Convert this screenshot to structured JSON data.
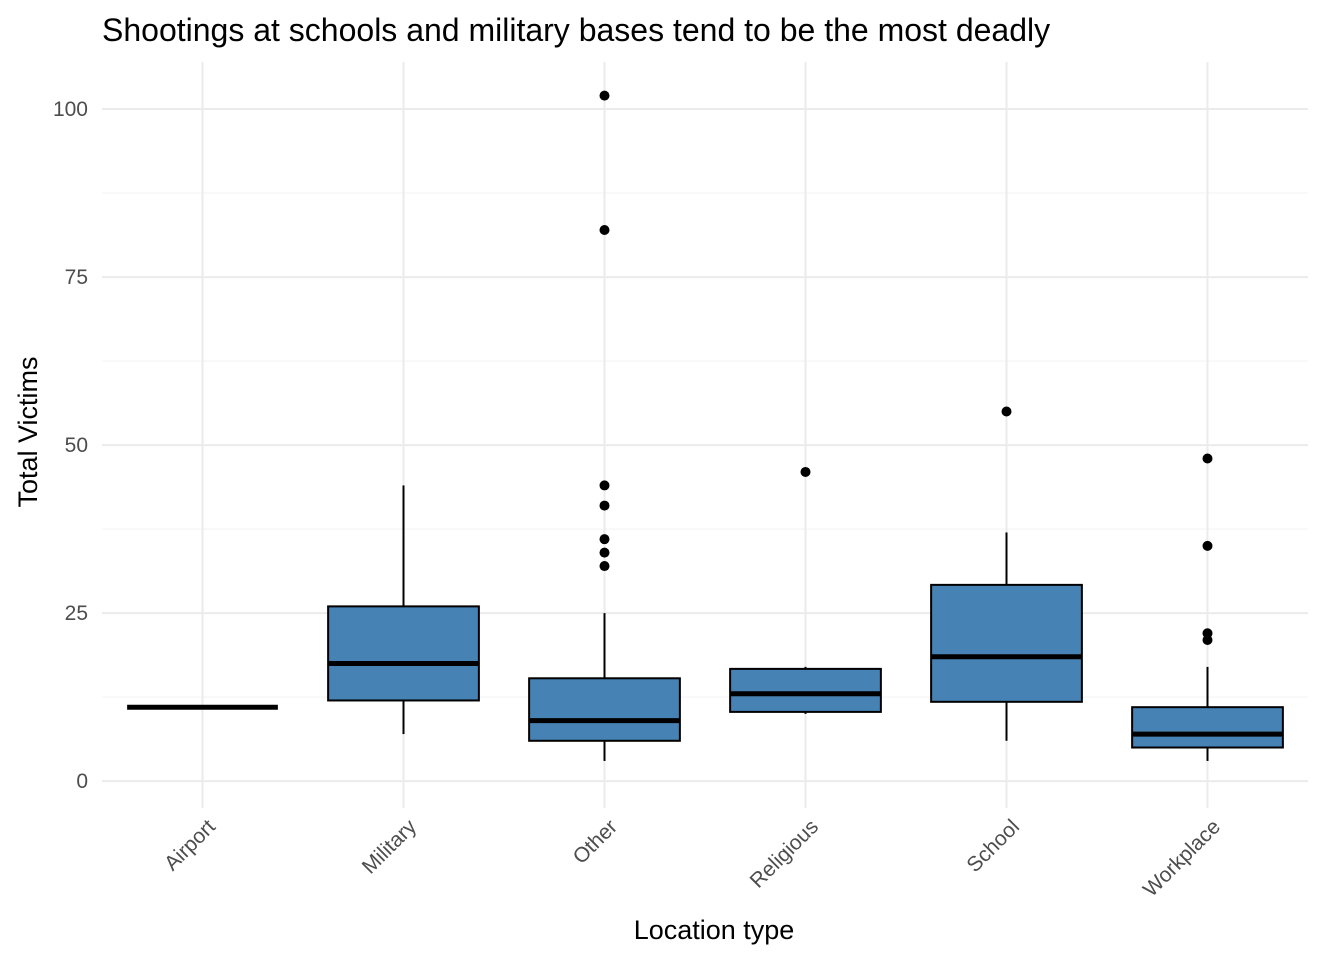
{
  "chart_data": {
    "type": "boxplot",
    "title": "Shootings at schools and military bases tend to be the most deadly",
    "xlabel": "Location type",
    "ylabel": "Total Victims",
    "ylim": [
      -4,
      107
    ],
    "yticks": [
      0,
      25,
      50,
      75,
      100
    ],
    "grid": true,
    "colors": {
      "fill": "#4682b4",
      "stroke": "#000000",
      "grid": "#ebebeb"
    },
    "categories": [
      "Airport",
      "Military",
      "Other",
      "Religious",
      "School",
      "Workplace"
    ],
    "boxes": [
      {
        "category": "Airport",
        "min": 11,
        "q1": 11,
        "median": 11,
        "q3": 11,
        "max": 11,
        "outliers": []
      },
      {
        "category": "Military",
        "min": 7,
        "q1": 12,
        "median": 17.5,
        "q3": 26,
        "max": 44,
        "outliers": []
      },
      {
        "category": "Other",
        "min": 3,
        "q1": 6,
        "median": 9,
        "q3": 15.3,
        "max": 25,
        "outliers": [
          102,
          82,
          44,
          41,
          36,
          34,
          32
        ]
      },
      {
        "category": "Religious",
        "min": 10,
        "q1": 10.3,
        "median": 13,
        "q3": 16.7,
        "max": 17,
        "outliers": [
          46
        ]
      },
      {
        "category": "School",
        "min": 6,
        "q1": 11.8,
        "median": 18.5,
        "q3": 29.2,
        "max": 37,
        "outliers": [
          55
        ]
      },
      {
        "category": "Workplace",
        "min": 3,
        "q1": 5,
        "median": 7,
        "q3": 11,
        "max": 17,
        "outliers": [
          48,
          35,
          22,
          21
        ]
      }
    ]
  }
}
